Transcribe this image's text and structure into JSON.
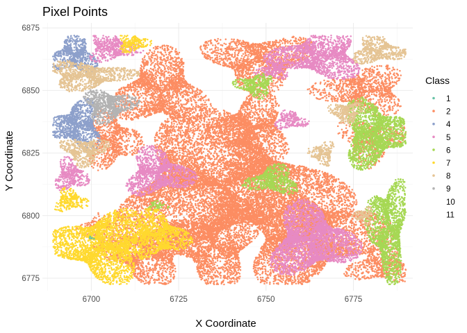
{
  "chart_data": {
    "type": "scatter",
    "title": "Pixel Points",
    "xlabel": "X Coordinate",
    "ylabel": "Y Coordinate",
    "xlim": [
      6686,
      6792
    ],
    "ylim": [
      6770,
      6877
    ],
    "xticks": [
      6700,
      6725,
      6750,
      6775
    ],
    "yticks": [
      6775,
      6800,
      6825,
      6850,
      6875
    ],
    "grid": true,
    "legend": {
      "title": "Class",
      "position": "right"
    },
    "classes": [
      {
        "label": "1",
        "color": "#66c2a5"
      },
      {
        "label": "2",
        "color": "#fc8d62"
      },
      {
        "label": "4",
        "color": "#8da0cb"
      },
      {
        "label": "5",
        "color": "#e78ac3"
      },
      {
        "label": "6",
        "color": "#a6d854"
      },
      {
        "label": "7",
        "color": "#ffd92f"
      },
      {
        "label": "8",
        "color": "#e5c494"
      },
      {
        "label": "9",
        "color": "#b3b3b3"
      },
      {
        "label": "10",
        "color": ""
      },
      {
        "label": "11",
        "color": ""
      }
    ],
    "regions": [
      {
        "class": "2",
        "cx": 6738,
        "cy": 6812,
        "rx": 34,
        "ry": 28,
        "density": 1.1
      },
      {
        "class": "2",
        "cx": 6720,
        "cy": 6850,
        "rx": 14,
        "ry": 16,
        "density": 1.0
      },
      {
        "class": "2",
        "cx": 6746,
        "cy": 6835,
        "rx": 12,
        "ry": 14,
        "density": 1.0
      },
      {
        "class": "2",
        "cx": 6716,
        "cy": 6785,
        "rx": 14,
        "ry": 12,
        "density": 1.0
      },
      {
        "class": "2",
        "cx": 6762,
        "cy": 6792,
        "rx": 22,
        "ry": 20,
        "density": 1.1
      },
      {
        "class": "2",
        "cx": 6735,
        "cy": 6788,
        "rx": 14,
        "ry": 16,
        "density": 1.0
      },
      {
        "class": "2",
        "cx": 6748,
        "cy": 6862,
        "rx": 16,
        "ry": 12,
        "density": 0.9
      },
      {
        "class": "2",
        "cx": 6706,
        "cy": 6830,
        "rx": 8,
        "ry": 12,
        "density": 0.9
      },
      {
        "class": "2",
        "cx": 6778,
        "cy": 6850,
        "rx": 14,
        "ry": 10,
        "density": 0.8
      },
      {
        "class": "2",
        "cx": 6780,
        "cy": 6830,
        "rx": 10,
        "ry": 10,
        "density": 0.6
      },
      {
        "class": "2",
        "cx": 6783,
        "cy": 6780,
        "rx": 10,
        "ry": 8,
        "density": 0.8
      },
      {
        "class": "2",
        "cx": 6702,
        "cy": 6795,
        "rx": 6,
        "ry": 6,
        "density": 0.5
      },
      {
        "class": "4",
        "cx": 6695,
        "cy": 6864,
        "rx": 7,
        "ry": 8,
        "density": 1.4
      },
      {
        "class": "4",
        "cx": 6696,
        "cy": 6836,
        "rx": 8,
        "ry": 10,
        "density": 1.4
      },
      {
        "class": "5",
        "cx": 6765,
        "cy": 6864,
        "rx": 14,
        "ry": 10,
        "density": 1.3
      },
      {
        "class": "5",
        "cx": 6719,
        "cy": 6817,
        "rx": 10,
        "ry": 10,
        "density": 1.3
      },
      {
        "class": "5",
        "cx": 6763,
        "cy": 6790,
        "rx": 13,
        "ry": 15,
        "density": 1.4
      },
      {
        "class": "5",
        "cx": 6694,
        "cy": 6816,
        "rx": 5,
        "ry": 7,
        "density": 1.2
      },
      {
        "class": "5",
        "cx": 6706,
        "cy": 6867,
        "rx": 8,
        "ry": 6,
        "density": 1.2
      },
      {
        "class": "5",
        "cx": 6757,
        "cy": 6838,
        "rx": 5,
        "ry": 4,
        "density": 1.2
      },
      {
        "class": "5",
        "cx": 6752,
        "cy": 6858,
        "rx": 5,
        "ry": 4,
        "density": 1.0
      },
      {
        "class": "6",
        "cx": 6781,
        "cy": 6833,
        "rx": 10,
        "ry": 14,
        "density": 1.4
      },
      {
        "class": "6",
        "cx": 6785,
        "cy": 6795,
        "rx": 6,
        "ry": 22,
        "density": 1.3
      },
      {
        "class": "6",
        "cx": 6747,
        "cy": 6852,
        "rx": 6,
        "ry": 5,
        "density": 1.3
      },
      {
        "class": "6",
        "cx": 6752,
        "cy": 6814,
        "rx": 8,
        "ry": 6,
        "density": 1.3
      },
      {
        "class": "6",
        "cx": 6719,
        "cy": 6804,
        "rx": 3,
        "ry": 2,
        "density": 1.0
      },
      {
        "class": "7",
        "cx": 6703,
        "cy": 6788,
        "rx": 14,
        "ry": 15,
        "density": 1.3
      },
      {
        "class": "7",
        "cx": 6719,
        "cy": 6792,
        "rx": 9,
        "ry": 10,
        "density": 1.3
      },
      {
        "class": "7",
        "cx": 6712,
        "cy": 6869,
        "rx": 5,
        "ry": 4,
        "density": 1.2
      },
      {
        "class": "7",
        "cx": 6694,
        "cy": 6806,
        "rx": 5,
        "ry": 5,
        "density": 1.1
      },
      {
        "class": "8",
        "cx": 6699,
        "cy": 6856,
        "rx": 13,
        "ry": 6,
        "density": 1.3
      },
      {
        "class": "8",
        "cx": 6698,
        "cy": 6826,
        "rx": 7,
        "ry": 6,
        "density": 1.3
      },
      {
        "class": "8",
        "cx": 6782,
        "cy": 6866,
        "rx": 8,
        "ry": 6,
        "density": 1.3
      },
      {
        "class": "8",
        "cx": 6773,
        "cy": 6841,
        "rx": 5,
        "ry": 5,
        "density": 1.2
      },
      {
        "class": "8",
        "cx": 6766,
        "cy": 6825,
        "rx": 4,
        "ry": 5,
        "density": 1.1
      },
      {
        "class": "8",
        "cx": 6778,
        "cy": 6800,
        "rx": 3,
        "ry": 4,
        "density": 1.0
      },
      {
        "class": "9",
        "cx": 6705,
        "cy": 6844,
        "rx": 8,
        "ry": 7,
        "density": 1.5
      },
      {
        "class": "1",
        "cx": 6700,
        "cy": 6791,
        "rx": 1,
        "ry": 1,
        "density": 0.6
      }
    ]
  }
}
